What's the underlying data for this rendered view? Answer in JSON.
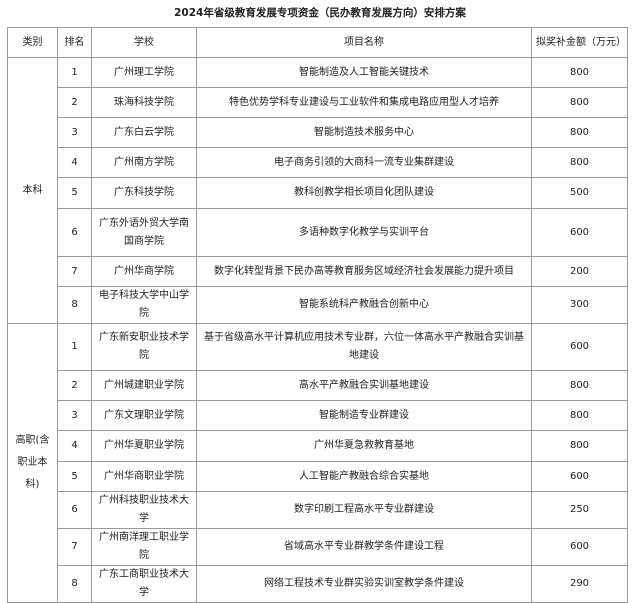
{
  "title": "2024年省级教育发展专项资金（民办教育发展方向）安排方案",
  "headers": [
    "类别",
    "排名",
    "学校",
    "项目名称",
    "拟奖补金额（万元）"
  ],
  "groups": [
    {
      "category": "本科",
      "rows": [
        {
          "rank": "1",
          "school": "广州理工学院",
          "project": "智能制造及人工智能关键技术",
          "amount": "800"
        },
        {
          "rank": "2",
          "school": "珠海科技学院",
          "project": "特色优势学科专业建设与工业软件和集成电路应用型人才培养",
          "amount": "800"
        },
        {
          "rank": "3",
          "school": "广东白云学院",
          "project": "智能制造技术服务中心",
          "amount": "800"
        },
        {
          "rank": "4",
          "school": "广州南方学院",
          "project": "电子商务引领的大商科一流专业集群建设",
          "amount": "800"
        },
        {
          "rank": "5",
          "school": "广东科技学院",
          "project": "教科创教学相长项目化团队建设",
          "amount": "500"
        },
        {
          "rank": "6",
          "school": "广东外语外贸大学南国商学院",
          "project": "多语种数字化教学与实训平台",
          "amount": "600"
        },
        {
          "rank": "7",
          "school": "广州华商学院",
          "project": "数字化转型背景下民办高等教育服务区域经济社会发展能力提升项目",
          "amount": "200"
        },
        {
          "rank": "8",
          "school": "电子科技大学中山学院",
          "project": "智能系统科产教融合创新中心",
          "amount": "300"
        }
      ]
    },
    {
      "category": "高职(含职业本科)",
      "rows": [
        {
          "rank": "1",
          "school": "广东新安职业技术学院",
          "project": "基于省级高水平计算机应用技术专业群，六位一体高水平产教融合实训基地建设",
          "amount": "600"
        },
        {
          "rank": "2",
          "school": "广州城建职业学院",
          "project": "高水平产教融合实训基地建设",
          "amount": "800"
        },
        {
          "rank": "3",
          "school": "广东文理职业学院",
          "project": "智能制造专业群建设",
          "amount": "800"
        },
        {
          "rank": "4",
          "school": "广州华夏职业学院",
          "project": "广州华夏急救教育基地",
          "amount": "800"
        },
        {
          "rank": "5",
          "school": "广州华商职业学院",
          "project": "人工智能产教融合综合实基地",
          "amount": "600"
        },
        {
          "rank": "6",
          "school": "广州科技职业技术大学",
          "project": "数字印刷工程高水平专业群建设",
          "amount": "250"
        },
        {
          "rank": "7",
          "school": "广州南洋理工职业学院",
          "project": "省域高水平专业群教学条件建设工程",
          "amount": "600"
        },
        {
          "rank": "8",
          "school": "广东工商职业技术大学",
          "project": "网络工程技术专业群实验实训室教学条件建设",
          "amount": "290"
        }
      ]
    }
  ]
}
